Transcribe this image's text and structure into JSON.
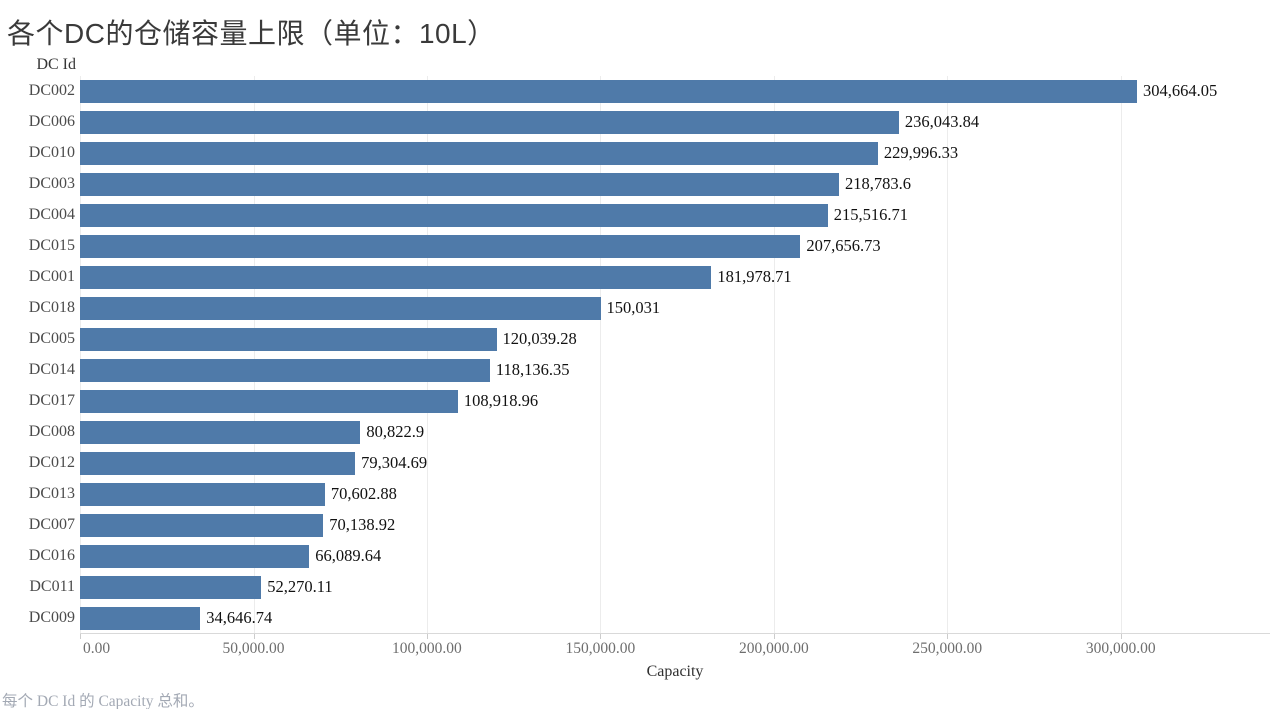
{
  "title": "各个DC的仓储容量上限（单位：10L）",
  "y_axis_field": "DC Id",
  "x_axis_title": "Capacity",
  "caption": "每个 DC Id 的 Capacity 总和。",
  "colors": {
    "bar": "#4f7aa9",
    "gridline": "#ececec",
    "axis_line": "#d9d9d9",
    "value_label": "#111111",
    "row_label": "#4b4b4b",
    "tick_label": "#6e6e6e",
    "caption": "#a3a9b4",
    "title": "#3a3a3a"
  },
  "chart_data": {
    "type": "bar",
    "orientation": "horizontal",
    "title": "各个DC的仓储容量上限（单位：10L）",
    "xlabel": "Capacity",
    "ylabel": "DC Id",
    "sort": "descending",
    "grid": "vertical-only",
    "legend": "none",
    "xlim": [
      0,
      343000
    ],
    "categories": [
      "DC002",
      "DC006",
      "DC010",
      "DC003",
      "DC004",
      "DC015",
      "DC001",
      "DC018",
      "DC005",
      "DC014",
      "DC017",
      "DC008",
      "DC012",
      "DC013",
      "DC007",
      "DC016",
      "DC011",
      "DC009"
    ],
    "values": [
      304664.05,
      236043.84,
      229996.33,
      218783.6,
      215516.71,
      207656.73,
      181978.71,
      150031,
      120039.28,
      118136.35,
      108918.96,
      80822.9,
      79304.69,
      70602.88,
      70138.92,
      66089.64,
      52270.11,
      34646.74
    ],
    "value_labels": [
      "304,664.05",
      "236,043.84",
      "229,996.33",
      "218,783.6",
      "215,516.71",
      "207,656.73",
      "181,978.71",
      "150,031",
      "120,039.28",
      "118,136.35",
      "108,918.96",
      "80,822.9",
      "79,304.69",
      "70,602.88",
      "70,138.92",
      "66,089.64",
      "52,270.11",
      "34,646.74"
    ],
    "x_tick_values": [
      0,
      50000,
      100000,
      150000,
      200000,
      250000,
      300000
    ],
    "x_tick_labels": [
      "0.00",
      "50,000.00",
      "100,000.00",
      "150,000.00",
      "200,000.00",
      "250,000.00",
      "300,000.00"
    ]
  }
}
